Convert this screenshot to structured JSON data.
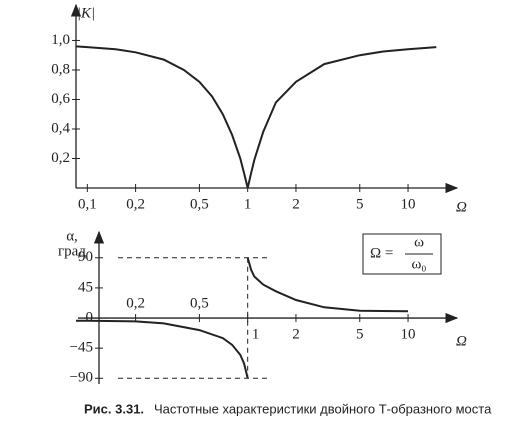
{
  "chart_data": [
    {
      "type": "line",
      "ylabel": "|K|",
      "xlabel": "Ω",
      "log_x": true,
      "color": "#222",
      "x": [
        0.085,
        0.1,
        0.15,
        0.2,
        0.3,
        0.4,
        0.5,
        0.6,
        0.7,
        0.8,
        0.9,
        0.95,
        1,
        1.05,
        1.1,
        1.25,
        1.5,
        2,
        3,
        5,
        7,
        10,
        15
      ],
      "values": [
        0.96,
        0.955,
        0.94,
        0.92,
        0.87,
        0.8,
        0.72,
        0.62,
        0.5,
        0.36,
        0.2,
        0.1,
        0,
        0.1,
        0.19,
        0.38,
        0.58,
        0.72,
        0.84,
        0.9,
        0.925,
        0.94,
        0.955
      ],
      "xlim": [
        0.085,
        17
      ],
      "ylim": [
        0,
        1.22
      ],
      "xticks": [
        {
          "value": 0.1,
          "label": "0,1"
        },
        {
          "value": 0.2,
          "label": "0,2"
        },
        {
          "value": 0.5,
          "label": "0,5"
        },
        1,
        2,
        5,
        10
      ],
      "yticks": [
        {
          "value": 0.2,
          "label": "0,2"
        },
        {
          "value": 0.4,
          "label": "0,4"
        },
        {
          "value": 0.6,
          "label": "0,6"
        },
        {
          "value": 0.8,
          "label": "0,8"
        },
        {
          "value": 1.0,
          "label": "1,0"
        }
      ]
    },
    {
      "type": "line",
      "ylabel": [
        "α,",
        "град"
      ],
      "xlabel": "Ω",
      "log_x": true,
      "color": "#222",
      "x": [
        0.085,
        0.1,
        0.2,
        0.3,
        0.5,
        0.7,
        0.8,
        0.9,
        0.95,
        1,
        1,
        1,
        1.05,
        1.1,
        1.25,
        1.5,
        2,
        3,
        5,
        10
      ],
      "values": [
        -4,
        -4,
        -5,
        -8,
        -18,
        -30,
        -40,
        -55,
        -68,
        -90,
        null,
        90,
        72,
        62,
        50,
        40,
        27,
        16,
        11,
        10
      ],
      "xlim": [
        0.085,
        17
      ],
      "ylim": [
        -100,
        130
      ],
      "xticks": [
        {
          "value": 0.2,
          "label": "0,2"
        },
        {
          "value": 0.5,
          "label": "0,5"
        },
        1,
        2,
        5,
        10
      ],
      "yticks": [
        90,
        45,
        0,
        {
          "value": -45,
          "label": "−45"
        },
        {
          "value": -90,
          "label": "−90"
        }
      ],
      "annotation": {
        "lhs": "Ω =",
        "numerator": "ω",
        "denominator": "ω₀"
      }
    }
  ],
  "caption": {
    "label": "Рис. 3.31.",
    "text": "Частотные характеристики двойного Т-образного моста"
  }
}
